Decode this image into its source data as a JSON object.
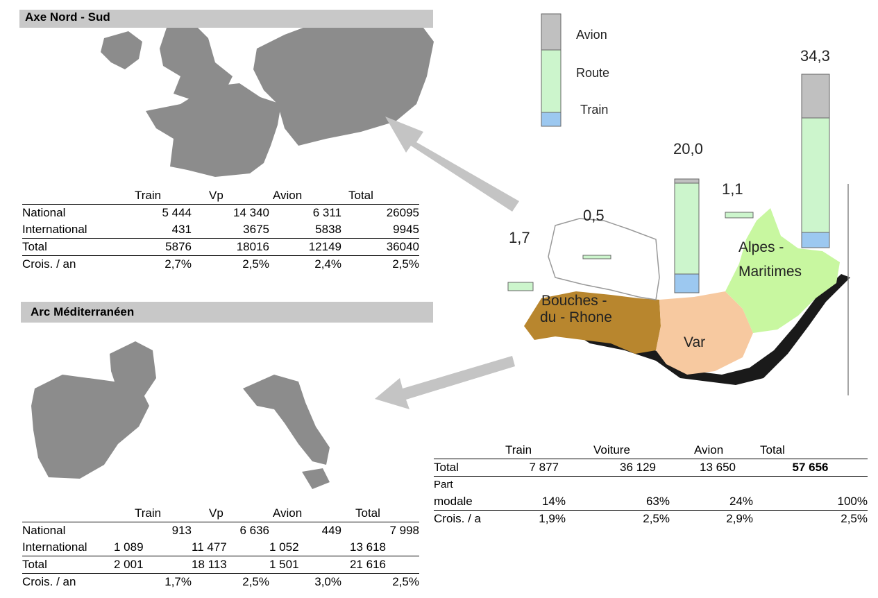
{
  "nord_sud": {
    "title": "Axe Nord - Sud",
    "headers": [
      "",
      "Train",
      "Vp",
      "Avion",
      "Total"
    ],
    "rows": [
      [
        "National",
        "5 444",
        "14 340",
        "6 311",
        "26095"
      ],
      [
        "International",
        "431",
        "3675",
        "5838",
        "9945"
      ],
      [
        "Total",
        "5876",
        "18016",
        "12149",
        "36040"
      ],
      [
        "Crois. / an",
        "2,7%",
        "2,5%",
        "2,4%",
        "2,5%"
      ]
    ]
  },
  "arc_med": {
    "title": "Arc Méditerranéen",
    "headers": [
      "",
      "Train",
      "Vp",
      "Avion",
      "Total"
    ],
    "rows": [
      [
        "National",
        "913",
        "6 636",
        "449",
        "7 998"
      ],
      [
        "International",
        "1 089",
        "11 477",
        "1 052",
        "13 618"
      ],
      [
        "Total",
        "2 001",
        "18 113",
        "1 501",
        "21 616"
      ],
      [
        "Crois. / an",
        "1,7%",
        "2,5%",
        "3,0%",
        "2,5%"
      ]
    ]
  },
  "region_table": {
    "headers": [
      "Train",
      "Voiture",
      "Avion",
      "Total"
    ],
    "total_row": [
      "Total",
      "7 877",
      "36 129",
      "13 650",
      "57 656"
    ],
    "part_label_1": "Part",
    "part_label_2": "modale",
    "part_row": [
      "14%",
      "63%",
      "24%",
      "100%"
    ],
    "crois_row": [
      "Crois. / a",
      "1,9%",
      "2,5%",
      "2,9%",
      "2,5%"
    ]
  },
  "legend": {
    "avion": "Avion",
    "route": "Route",
    "train": "Train"
  },
  "colors": {
    "avion": "#c0c0c0",
    "route": "#ccf5cc",
    "train": "#9cc8f0",
    "bouches": "#b8862e",
    "var": "#f7c9a0",
    "alpes": "#c8f7a0",
    "map_grey": "#8c8c8c"
  },
  "bar_values": {
    "bouches_left": "1,7",
    "bouches_top": "0,5",
    "var": "20,0",
    "alpes_small": "1,1",
    "alpes": "34,3"
  },
  "departments": {
    "bouches_1": "Bouches -",
    "bouches_2": "du - Rhone",
    "var": "Var",
    "alpes_1": "Alpes -",
    "alpes_2": "Maritimes"
  }
}
